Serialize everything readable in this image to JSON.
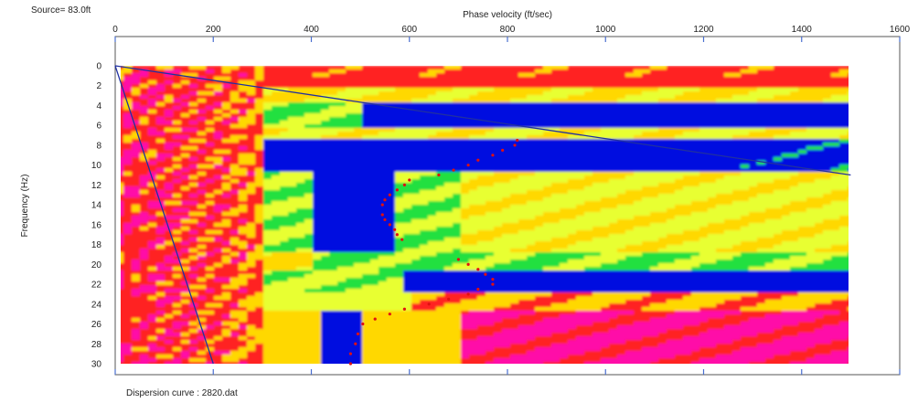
{
  "source_label": "Source= 83.0ft",
  "footer_label": "Dispersion curve : 2820.dat",
  "chart_data": {
    "type": "heatmap",
    "title": "",
    "xlabel": "Phase velocity (ft/sec)",
    "ylabel": "Frequency (Hz)",
    "xlim": [
      0,
      1600
    ],
    "ylim": [
      0,
      30
    ],
    "y_inverted": true,
    "x_axis_position": "top",
    "x_ticks": [
      0,
      200,
      400,
      600,
      800,
      1000,
      1200,
      1400,
      1600
    ],
    "y_ticks": [
      0,
      2,
      4,
      6,
      8,
      10,
      12,
      14,
      16,
      18,
      20,
      22,
      24,
      26,
      28,
      30
    ],
    "grid": "vertical lines at x ticks",
    "data_extent_x": [
      0,
      1500
    ],
    "colormap": [
      "#ff10a8",
      "#ff2020",
      "#ffd800",
      "#e8ff30",
      "#20e040",
      "#0010e0"
    ],
    "dispersion_curve": {
      "x": [
        820,
        815,
        790,
        770,
        740,
        720,
        690,
        660,
        600,
        590,
        575,
        560,
        550,
        545,
        545,
        550,
        560,
        570,
        575,
        585,
        700,
        720,
        740,
        755,
        770,
        770,
        740,
        720,
        680,
        640,
        590,
        560,
        530,
        505,
        495,
        490,
        480,
        480
      ],
      "y": [
        7.5,
        8,
        8.5,
        9,
        9.5,
        10,
        10.5,
        11,
        11.5,
        12,
        12.5,
        13,
        13.5,
        14,
        15,
        15.5,
        16,
        16.5,
        17,
        17.5,
        19.5,
        20,
        20.5,
        21,
        21.5,
        22,
        22.5,
        23,
        23.5,
        24,
        24.5,
        25,
        25.5,
        26,
        27,
        28,
        29,
        30
      ]
    },
    "lines": [
      {
        "x": [
          0,
          1500
        ],
        "y": [
          0,
          11
        ]
      },
      {
        "x": [
          0,
          200
        ],
        "y": [
          0,
          30
        ]
      }
    ]
  }
}
